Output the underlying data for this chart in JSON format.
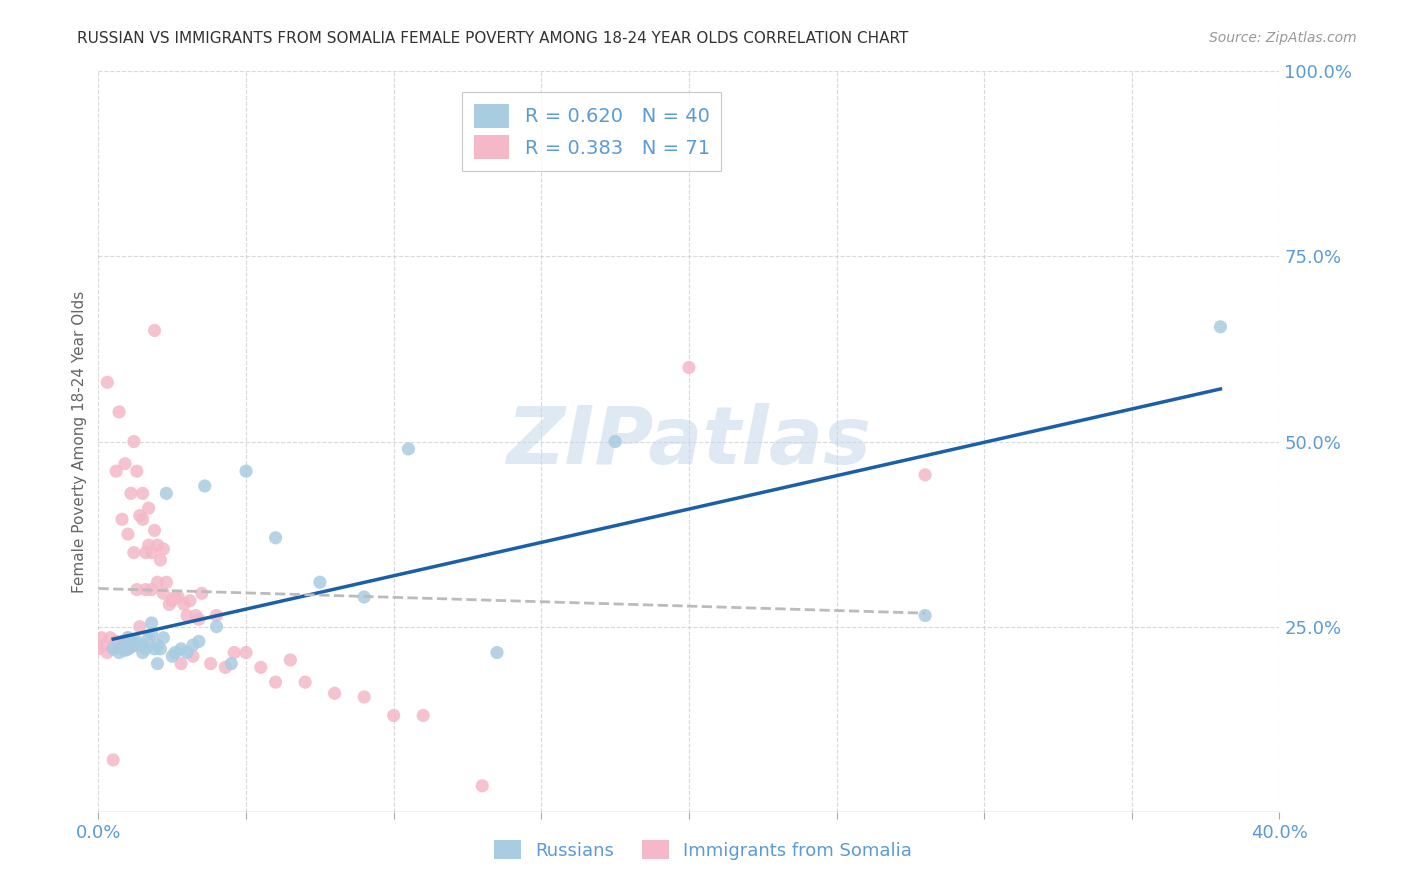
{
  "title": "RUSSIAN VS IMMIGRANTS FROM SOMALIA FEMALE POVERTY AMONG 18-24 YEAR OLDS CORRELATION CHART",
  "source": "Source: ZipAtlas.com",
  "ylabel": "Female Poverty Among 18-24 Year Olds",
  "xlim": [
    0.0,
    0.4
  ],
  "ylim": [
    0.0,
    1.0
  ],
  "color_russian": "#a8cce0",
  "color_somalia": "#f4b8c8",
  "color_line_russian": "#1a5fa8",
  "color_line_somalia": "#bbbbbb",
  "color_axis_text": "#5b9bd5",
  "color_grid": "#d0d0d0",
  "background_color": "#ffffff",
  "watermark": "ZIPatlas",
  "rus_x": [
    0.005,
    0.007,
    0.008,
    0.009,
    0.01,
    0.01,
    0.011,
    0.012,
    0.013,
    0.013,
    0.015,
    0.015,
    0.016,
    0.017,
    0.018,
    0.018,
    0.019,
    0.02,
    0.02,
    0.021,
    0.022,
    0.023,
    0.025,
    0.026,
    0.028,
    0.03,
    0.032,
    0.034,
    0.036,
    0.04,
    0.045,
    0.05,
    0.06,
    0.075,
    0.09,
    0.105,
    0.135,
    0.175,
    0.28,
    0.38
  ],
  "rus_y": [
    0.22,
    0.215,
    0.225,
    0.218,
    0.22,
    0.235,
    0.222,
    0.228,
    0.225,
    0.23,
    0.215,
    0.225,
    0.22,
    0.235,
    0.24,
    0.255,
    0.22,
    0.225,
    0.2,
    0.22,
    0.235,
    0.43,
    0.21,
    0.215,
    0.22,
    0.215,
    0.225,
    0.23,
    0.44,
    0.25,
    0.2,
    0.46,
    0.37,
    0.31,
    0.29,
    0.49,
    0.215,
    0.5,
    0.265,
    0.655
  ],
  "som_x": [
    0.0,
    0.001,
    0.002,
    0.003,
    0.003,
    0.004,
    0.005,
    0.005,
    0.006,
    0.006,
    0.007,
    0.007,
    0.008,
    0.008,
    0.009,
    0.009,
    0.01,
    0.01,
    0.01,
    0.011,
    0.011,
    0.012,
    0.012,
    0.013,
    0.013,
    0.014,
    0.014,
    0.015,
    0.015,
    0.016,
    0.016,
    0.017,
    0.017,
    0.018,
    0.018,
    0.019,
    0.019,
    0.02,
    0.02,
    0.021,
    0.022,
    0.022,
    0.023,
    0.024,
    0.025,
    0.026,
    0.027,
    0.028,
    0.029,
    0.03,
    0.031,
    0.032,
    0.033,
    0.034,
    0.035,
    0.038,
    0.04,
    0.043,
    0.046,
    0.05,
    0.055,
    0.06,
    0.065,
    0.07,
    0.08,
    0.09,
    0.1,
    0.11,
    0.13,
    0.2,
    0.28
  ],
  "som_y": [
    0.22,
    0.235,
    0.225,
    0.58,
    0.215,
    0.235,
    0.07,
    0.22,
    0.23,
    0.46,
    0.225,
    0.54,
    0.23,
    0.395,
    0.225,
    0.47,
    0.22,
    0.235,
    0.375,
    0.23,
    0.43,
    0.35,
    0.5,
    0.3,
    0.46,
    0.25,
    0.4,
    0.395,
    0.43,
    0.35,
    0.3,
    0.41,
    0.36,
    0.35,
    0.3,
    0.38,
    0.65,
    0.31,
    0.36,
    0.34,
    0.295,
    0.355,
    0.31,
    0.28,
    0.285,
    0.29,
    0.29,
    0.2,
    0.28,
    0.265,
    0.285,
    0.21,
    0.265,
    0.26,
    0.295,
    0.2,
    0.265,
    0.195,
    0.215,
    0.215,
    0.195,
    0.175,
    0.205,
    0.175,
    0.16,
    0.155,
    0.13,
    0.13,
    0.035,
    0.6,
    0.455
  ]
}
